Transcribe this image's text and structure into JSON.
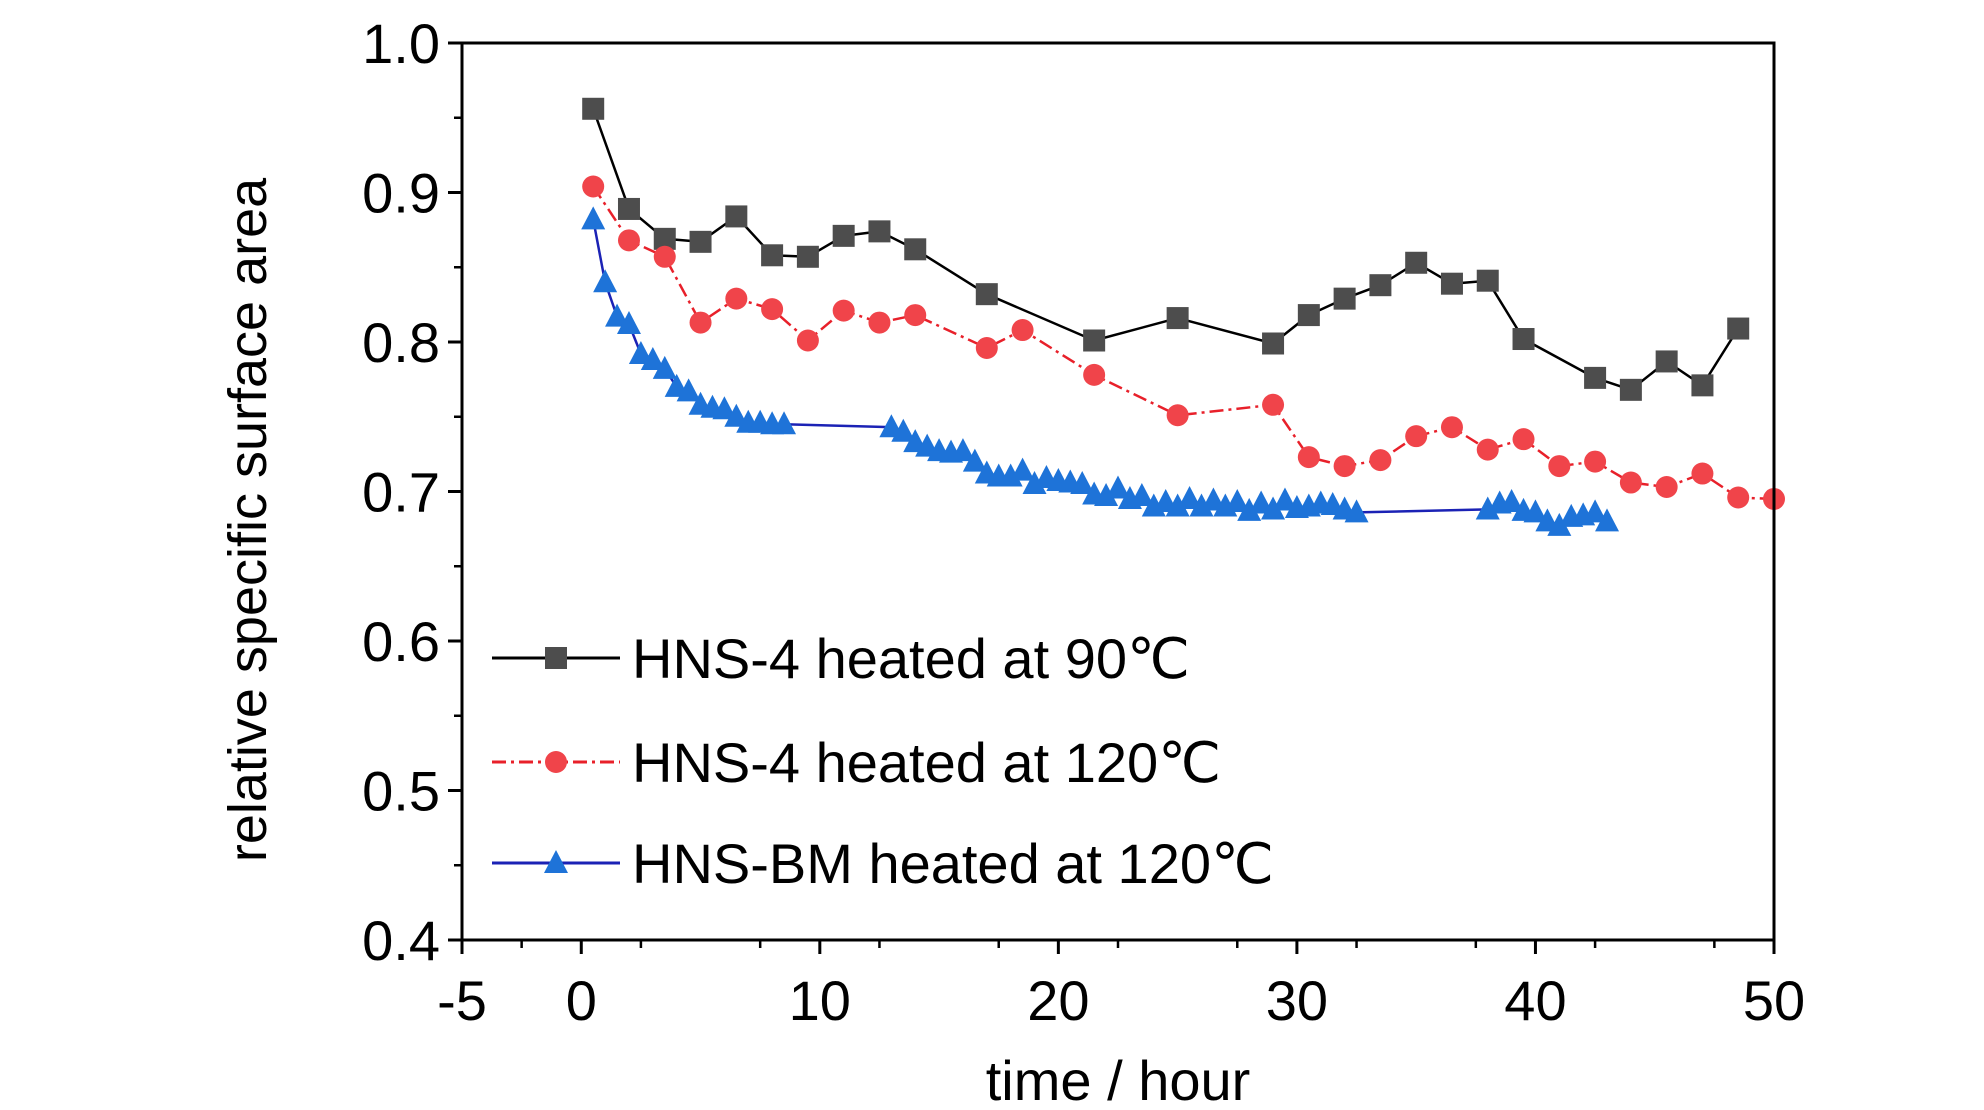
{
  "chart_data": {
    "type": "line",
    "title": "",
    "xlabel": "time / hour",
    "ylabel": "relative specific surface area",
    "xlim": [
      -5,
      50
    ],
    "ylim": [
      0.4,
      1.0
    ],
    "xticks": [
      -5,
      0,
      10,
      20,
      30,
      40,
      50
    ],
    "yticks": [
      0.4,
      0.5,
      0.6,
      0.7,
      0.8,
      0.9,
      1.0
    ],
    "legend_position": "bottom-left",
    "grid": false,
    "series": [
      {
        "name": "HNS-4 heated at 90℃",
        "color": "#000000",
        "marker_color": "#4d4d4d",
        "marker": "square",
        "line_style": "solid",
        "x": [
          0.5,
          2,
          3.5,
          5,
          6.5,
          8,
          9.5,
          11,
          12.5,
          14,
          17,
          21.5,
          25,
          29,
          30.5,
          32,
          33.5,
          35,
          36.5,
          38,
          39.5,
          42.5,
          44,
          45.5,
          47,
          48.5
        ],
        "y": [
          0.956,
          0.889,
          0.869,
          0.867,
          0.884,
          0.858,
          0.857,
          0.871,
          0.874,
          0.862,
          0.832,
          0.801,
          0.816,
          0.799,
          0.818,
          0.829,
          0.838,
          0.853,
          0.839,
          0.841,
          0.802,
          0.776,
          0.768,
          0.787,
          0.771,
          0.809
        ]
      },
      {
        "name": "HNS-4 heated at 120℃",
        "color": "#e8202a",
        "marker_color": "#f0444a",
        "marker": "circle",
        "line_style": "dash-dot",
        "x": [
          0.5,
          2,
          3.5,
          5,
          6.5,
          8,
          9.5,
          11,
          12.5,
          14,
          17,
          18.5,
          21.5,
          25,
          29,
          30.5,
          32,
          33.5,
          35,
          36.5,
          38,
          39.5,
          41,
          42.5,
          44,
          45.5,
          47,
          48.5,
          50
        ],
        "y": [
          0.904,
          0.868,
          0.857,
          0.813,
          0.829,
          0.822,
          0.801,
          0.821,
          0.813,
          0.818,
          0.796,
          0.808,
          0.778,
          0.751,
          0.758,
          0.723,
          0.717,
          0.721,
          0.737,
          0.743,
          0.728,
          0.735,
          0.717,
          0.72,
          0.706,
          0.703,
          0.712,
          0.696,
          0.695
        ]
      },
      {
        "name": "HNS-BM heated at 120℃",
        "color": "#1b22b5",
        "marker_color": "#1e73d8",
        "marker": "triangle",
        "line_style": "solid",
        "x": [
          0.5,
          1,
          1.5,
          2,
          2.5,
          3,
          3.5,
          4,
          4.5,
          5,
          5.5,
          6,
          6.5,
          7,
          7.5,
          8,
          8.5,
          13,
          13.5,
          14,
          14.5,
          15,
          15.5,
          16,
          16.5,
          17,
          17.5,
          18,
          18.5,
          19,
          19.5,
          20,
          20.5,
          21,
          21.5,
          22,
          22.5,
          23,
          23.5,
          24,
          24.5,
          25,
          25.5,
          26,
          26.5,
          27,
          27.5,
          28,
          28.5,
          29,
          29.5,
          30,
          30.5,
          31,
          31.5,
          32,
          32.5,
          38,
          38.5,
          39,
          39.5,
          40,
          40.5,
          41,
          41.5,
          42,
          42.5,
          43
        ],
        "y": [
          0.882,
          0.84,
          0.817,
          0.812,
          0.792,
          0.788,
          0.782,
          0.77,
          0.767,
          0.758,
          0.756,
          0.755,
          0.75,
          0.746,
          0.746,
          0.745,
          0.745,
          0.743,
          0.74,
          0.733,
          0.73,
          0.727,
          0.726,
          0.727,
          0.72,
          0.712,
          0.71,
          0.71,
          0.714,
          0.705,
          0.709,
          0.707,
          0.706,
          0.705,
          0.698,
          0.697,
          0.702,
          0.695,
          0.697,
          0.69,
          0.693,
          0.69,
          0.695,
          0.69,
          0.694,
          0.69,
          0.693,
          0.687,
          0.692,
          0.688,
          0.694,
          0.689,
          0.69,
          0.692,
          0.691,
          0.688,
          0.686,
          0.688,
          0.692,
          0.693,
          0.687,
          0.686,
          0.68,
          0.677,
          0.683,
          0.684,
          0.686,
          0.68
        ]
      }
    ]
  }
}
